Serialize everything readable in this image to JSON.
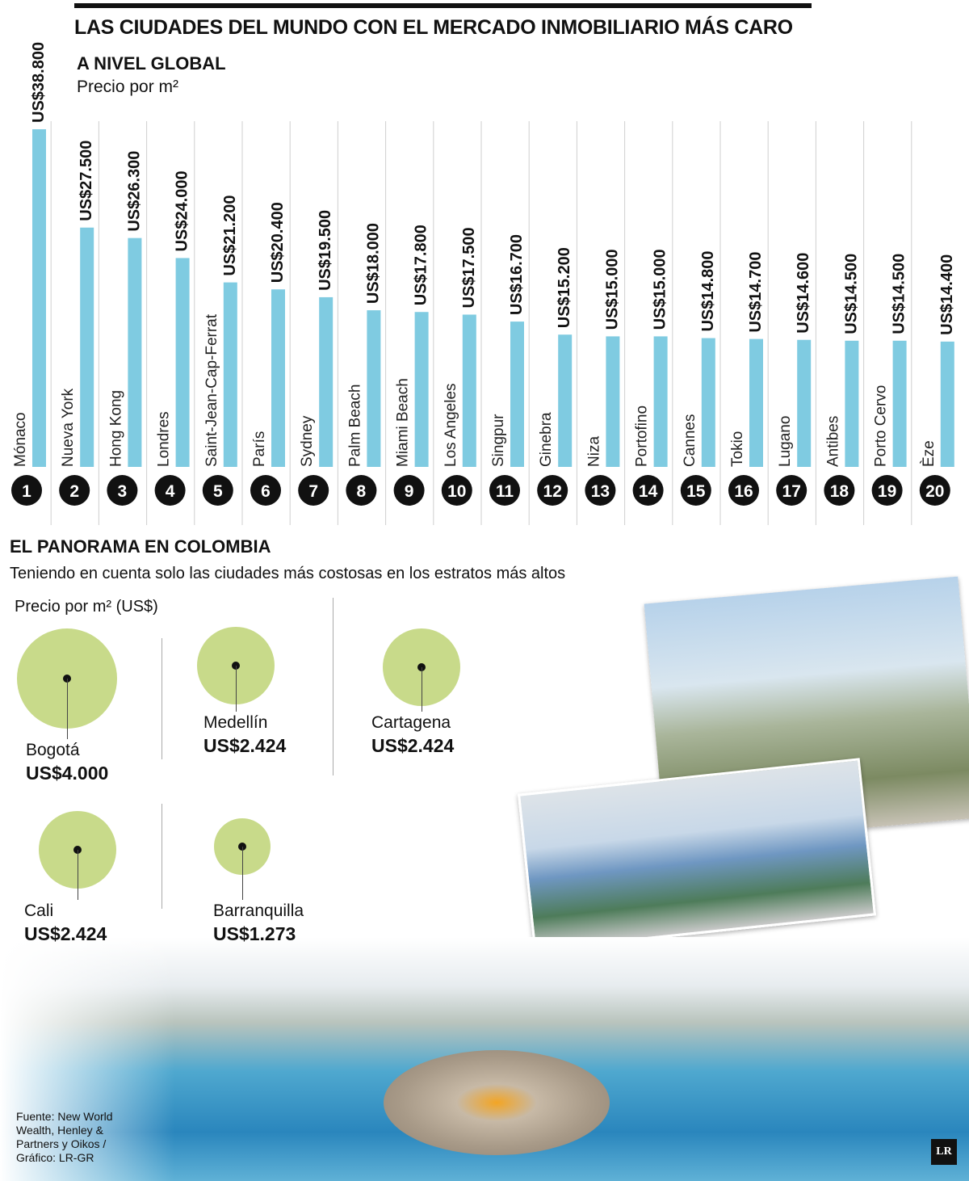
{
  "title": "LAS CIUDADES DEL MUNDO CON EL MERCADO INMOBILIARIO MÁS CARO",
  "chart_data": [
    {
      "type": "bar",
      "title": "A NIVEL GLOBAL",
      "ylabel": "Precio por m²",
      "ylim": [
        0,
        38800
      ],
      "grid": false,
      "categories": [
        "Mónaco",
        "Nueva York",
        "Hong Kong",
        "Londres",
        "Saint-Jean-Cap-Ferrat",
        "París",
        "Sydney",
        "Palm Beach",
        "Miami Beach",
        "Los Angeles",
        "Singpur",
        "Ginebra",
        "Niza",
        "Portofino",
        "Cannes",
        "Tokio",
        "Lugano",
        "Antibes",
        "Porto Cervo",
        "Èze"
      ],
      "ranks": [
        "1",
        "2",
        "3",
        "4",
        "5",
        "6",
        "7",
        "8",
        "9",
        "10",
        "11",
        "12",
        "13",
        "14",
        "15",
        "16",
        "17",
        "18",
        "19",
        "20"
      ],
      "values": [
        38800,
        27500,
        26300,
        24000,
        21200,
        20400,
        19500,
        18000,
        17800,
        17500,
        16700,
        15200,
        15000,
        15000,
        14800,
        14700,
        14600,
        14500,
        14500,
        14400
      ],
      "data_labels": [
        "US$38.800",
        "US$27.500",
        "US$26.300",
        "US$24.000",
        "US$21.200",
        "US$20.400",
        "US$19.500",
        "US$18.000",
        "US$17.800",
        "US$17.500",
        "US$16.700",
        "US$15.200",
        "US$15.000",
        "US$15.000",
        "US$14.800",
        "US$14.700",
        "US$14.600",
        "US$14.500",
        "US$14.500",
        "US$14.400"
      ],
      "bar_color": "#7fcbe1"
    },
    {
      "type": "bubble",
      "title": "EL PANORAMA EN COLOMBIA",
      "subtitle": "Teniendo en cuenta solo las ciudades más costosas en los estratos más altos",
      "unit": "Precio por m² (US$)",
      "categories": [
        "Bogotá",
        "Medellín",
        "Cartagena",
        "Cali",
        "Barranquilla"
      ],
      "values": [
        4000,
        2424,
        2424,
        2424,
        1273
      ],
      "data_labels": [
        "US$4.000",
        "US$2.424",
        "US$2.424",
        "US$2.424",
        "US$1.273"
      ],
      "bubble_color": "#c8da8a"
    }
  ],
  "source": "Fuente: New World Wealth, Henley & Partners y Oikos / Gráfico: LR-GR",
  "logo": "LR"
}
